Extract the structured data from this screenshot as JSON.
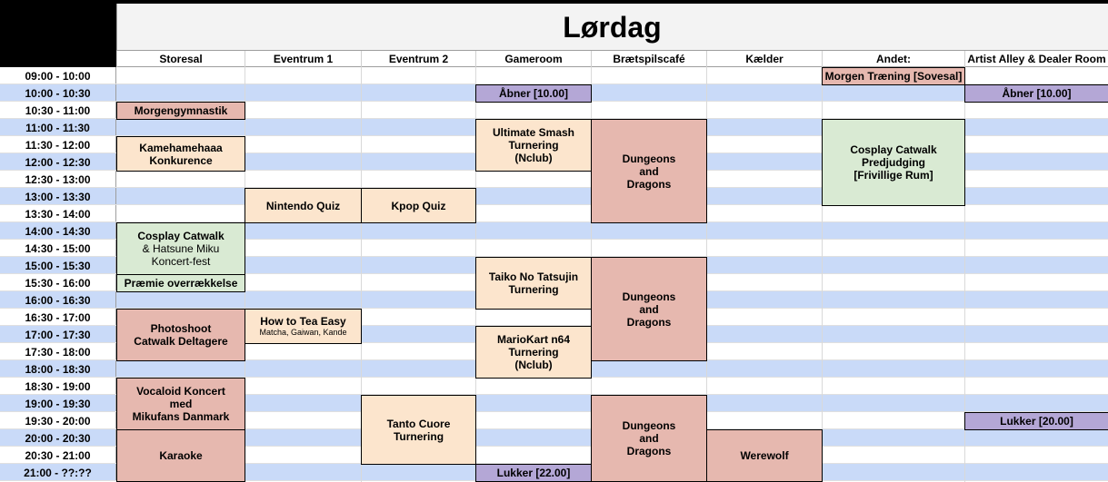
{
  "title": "Lørdag",
  "columns": [
    "Storesal",
    "Eventrum 1",
    "Eventrum 2",
    "Gameroom",
    "Brætspilscafé",
    "Kælder",
    "Andet:",
    "Artist Alley & Dealer Room"
  ],
  "times": [
    "09:00 - 10:00",
    "10:00 - 10:30",
    "10:30 - 11:00",
    "11:00 - 11:30",
    "11:30 - 12:00",
    "12:00 - 12:30",
    "12:30 - 13:00",
    "13:00 - 13:30",
    "13:30 - 14:00",
    "14:00 - 14:30",
    "14:30 - 15:00",
    "15:00 - 15:30",
    "15:30 - 16:00",
    "16:00 - 16:30",
    "16:30 - 17:00",
    "17:00 - 17:30",
    "17:30 - 18:00",
    "18:00 - 18:30",
    "18:30 - 19:00",
    "19:00 - 19:30",
    "19:30 - 20:00",
    "20:00 - 20:30",
    "20:30 - 21:00",
    "21:00 - ??:??"
  ],
  "events": [
    {
      "col": 6,
      "row": 0,
      "span": 1,
      "color": "#e6b8af",
      "lines": [
        "Morgen Træning [Sovesal]"
      ]
    },
    {
      "col": 3,
      "row": 1,
      "span": 1,
      "color": "#b4a7d6",
      "lines": [
        "Åbner [10.00]"
      ]
    },
    {
      "col": 7,
      "row": 1,
      "span": 1,
      "color": "#b4a7d6",
      "lines": [
        "Åbner [10.00]"
      ]
    },
    {
      "col": 0,
      "row": 2,
      "span": 1,
      "color": "#e6b8af",
      "lines": [
        "Morgengymnastik"
      ]
    },
    {
      "col": 3,
      "row": 3,
      "span": 3,
      "color": "#fce5cd",
      "lines": [
        "Ultimate Smash",
        "Turnering",
        "(Nclub)"
      ]
    },
    {
      "col": 4,
      "row": 3,
      "span": 6,
      "color": "#e6b8af",
      "lines": [
        "Dungeons",
        "and",
        "Dragons"
      ]
    },
    {
      "col": 6,
      "row": 3,
      "span": 5,
      "color": "#d9ead3",
      "lines": [
        "Cosplay Catwalk",
        "Predjudging",
        "[Frivillige Rum]"
      ]
    },
    {
      "col": 0,
      "row": 4,
      "span": 2,
      "color": "#fce5cd",
      "lines": [
        "Kamehamehaaa",
        "Konkurence"
      ]
    },
    {
      "col": 1,
      "row": 7,
      "span": 2,
      "color": "#fce5cd",
      "lines": [
        "Nintendo Quiz"
      ]
    },
    {
      "col": 2,
      "row": 7,
      "span": 2,
      "color": "#fce5cd",
      "lines": [
        "Kpop Quiz"
      ]
    },
    {
      "col": 0,
      "row": 9,
      "span": 3,
      "color": "#d9ead3",
      "lines": [
        "Cosplay Catwalk"
      ],
      "sublines": [
        "& Hatsune Miku",
        "Koncert-fest"
      ]
    },
    {
      "col": 3,
      "row": 11,
      "span": 3,
      "color": "#fce5cd",
      "lines": [
        "Taiko No Tatsujin",
        "Turnering"
      ]
    },
    {
      "col": 4,
      "row": 11,
      "span": 6,
      "color": "#e6b8af",
      "lines": [
        "Dungeons",
        "and",
        "Dragons"
      ]
    },
    {
      "col": 0,
      "row": 12,
      "span": 1,
      "color": "#d9ead3",
      "lines": [
        "Præmie overrækkelse"
      ]
    },
    {
      "col": 0,
      "row": 14,
      "span": 3,
      "color": "#e6b8af",
      "lines": [
        "Photoshoot",
        "Catwalk Deltagere"
      ]
    },
    {
      "col": 1,
      "row": 14,
      "span": 2,
      "color": "#fce5cd",
      "lines": [
        "How to Tea Easy"
      ],
      "tiny": [
        "Matcha, Gaiwan, Kande"
      ]
    },
    {
      "col": 3,
      "row": 15,
      "span": 3,
      "color": "#fce5cd",
      "lines": [
        "MarioKart n64",
        "Turnering",
        "(Nclub)"
      ]
    },
    {
      "col": 0,
      "row": 18,
      "span": 3,
      "color": "#e6b8af",
      "lines": [
        "Vocaloid Koncert",
        "med",
        "Mikufans Danmark"
      ]
    },
    {
      "col": 2,
      "row": 19,
      "span": 4,
      "color": "#fce5cd",
      "lines": [
        "Tanto Cuore",
        "Turnering"
      ]
    },
    {
      "col": 4,
      "row": 19,
      "span": 5,
      "color": "#e6b8af",
      "lines": [
        "Dungeons",
        "and",
        "Dragons"
      ]
    },
    {
      "col": 7,
      "row": 20,
      "span": 1,
      "color": "#b4a7d6",
      "lines": [
        "Lukker [20.00]"
      ]
    },
    {
      "col": 0,
      "row": 21,
      "span": 3,
      "color": "#e6b8af",
      "lines": [
        "Karaoke"
      ]
    },
    {
      "col": 5,
      "row": 21,
      "span": 3,
      "color": "#e6b8af",
      "lines": [
        "Werewolf"
      ]
    },
    {
      "col": 3,
      "row": 23,
      "span": 1,
      "color": "#b4a7d6",
      "lines": [
        "Lukker [22.00]"
      ]
    }
  ]
}
